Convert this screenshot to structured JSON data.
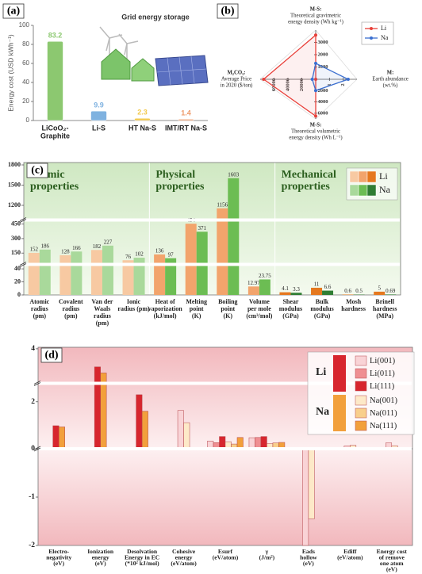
{
  "chart_data": [
    {
      "type": "bar",
      "label": "(a)",
      "ylabel": "Energy cost (USD kWh⁻¹)",
      "annotation": "Grid energy storage",
      "categories": [
        [
          "LiCoO₂-",
          "Graphite"
        ],
        [
          "Li-S"
        ],
        [
          "HT Na-S"
        ],
        [
          "IMT/RT Na-S"
        ]
      ],
      "values": [
        83.2,
        9.9,
        2.3,
        1.4
      ],
      "colors": [
        "#8cc870",
        "#7fb2e0",
        "#f2c94c",
        "#ee9a6a"
      ],
      "ylim": [
        0,
        100
      ],
      "yticks": [
        0,
        20,
        40,
        60,
        80,
        100
      ]
    },
    {
      "type": "radar",
      "label": "(b)",
      "axes": [
        {
          "label": [
            "M-S:",
            "Theoretical gravimetric",
            "energy density (Wh kg⁻¹)"
          ],
          "lim": [
            0,
            4000
          ],
          "ticks": [
            1000,
            2000,
            3000
          ]
        },
        {
          "label": [
            "M:",
            "Earth abundance",
            "(wt.%)"
          ],
          "lim": [
            0,
            3
          ],
          "ticks": [
            1,
            2
          ]
        },
        {
          "label": [
            "M-S:",
            "Theoretical volumetric",
            "energy density (Wh L⁻¹)"
          ],
          "lim": [
            0,
            7000
          ],
          "ticks": [
            2000,
            4000,
            6000
          ]
        },
        {
          "label": [
            "M₂CO₃:",
            "Average Price",
            "in 2020 ($/ton)"
          ],
          "lim": [
            0,
            80000
          ],
          "ticks": [
            20000,
            40000,
            60000
          ]
        }
      ],
      "series": [
        {
          "name": "Li",
          "color": "#e8403a",
          "values": [
            3600,
            0.002,
            6500,
            75000
          ]
        },
        {
          "name": "Na",
          "color": "#3b6fd0",
          "values": [
            1300,
            2.36,
            2000,
            5000
          ]
        }
      ]
    },
    {
      "type": "bar",
      "label": "(c)",
      "groups": [
        {
          "label": [
            "Atomic",
            "properties"
          ],
          "start": 0,
          "end": 3
        },
        {
          "label": [
            "Physical",
            "properties"
          ],
          "start": 4,
          "end": 7
        },
        {
          "label": [
            "Mechanical",
            "properties"
          ],
          "start": 8,
          "end": 11
        }
      ],
      "categories": [
        [
          "Atomic",
          "radius",
          "(pm)"
        ],
        [
          "Covalent",
          "radius",
          "(pm)"
        ],
        [
          "Van der",
          "Waals",
          "radius",
          "(pm)"
        ],
        [
          "Ionic",
          "radius (pm)"
        ],
        [
          "Heat of",
          "vaporization",
          "(kJ/mol)"
        ],
        [
          "Melting",
          "point",
          "(K)"
        ],
        [
          "Boiling",
          "point",
          "(K)"
        ],
        [
          "Volume",
          "per mole",
          "(cm³/mol)"
        ],
        [
          "Shear",
          "modulus",
          "(GPa)"
        ],
        [
          "Bulk",
          "modulus",
          "(GPa)"
        ],
        [
          "Mosh",
          "hardness"
        ],
        [
          "Brinell",
          "hardness",
          "(MPa)"
        ]
      ],
      "series": [
        {
          "name": "Li",
          "colors": [
            "#f7c9a2",
            "#f2a46c",
            "#e5781f"
          ],
          "values": [
            152,
            128,
            182,
            76,
            136,
            454,
            1156,
            12.97,
            4.1,
            11,
            0.6,
            5
          ]
        },
        {
          "name": "Na",
          "colors": [
            "#a9d99b",
            "#6cbd53",
            "#2f7d33"
          ],
          "values": [
            186,
            166,
            227,
            102,
            97,
            371,
            1603,
            23.75,
            3.3,
            6.6,
            0.5,
            0.69
          ]
        }
      ],
      "ylim": [
        0,
        1800
      ],
      "y_segments": [
        [
          0,
          45
        ],
        [
          45,
          480
        ],
        [
          1000,
          1800
        ]
      ],
      "yticks": [
        0,
        20,
        40,
        150,
        300,
        450,
        1200,
        1500,
        1800
      ]
    },
    {
      "type": "bar",
      "label": "(d)",
      "categories": [
        [
          "Electro-",
          "negativity",
          "(eV)"
        ],
        [
          "Ionization",
          "energy",
          "(eV)"
        ],
        [
          "Desolvation",
          "Energy in EC",
          "(*10² kJ/mol)"
        ],
        [
          "Cohesive",
          "energy",
          "(eV/atom)"
        ],
        [
          "Esurf",
          "(eV/atom)"
        ],
        [
          "γ",
          "(J/m²)"
        ],
        [
          "Eads",
          "hollow",
          "(eV)"
        ],
        [
          "Ediff",
          "(eV/atom)"
        ],
        [
          "Energy cost",
          "of remove",
          "one atom",
          "(eV)"
        ]
      ],
      "legend_groups": [
        "Li",
        "Na"
      ],
      "series": [
        {
          "name": "Li(001)",
          "color": "#f9d3d6",
          "values": [
            null,
            null,
            null,
            1.63,
            0.33,
            0.47,
            -2.0,
            0.12,
            0.25
          ]
        },
        {
          "name": "Li(011)",
          "color": "#ef8f92",
          "values": [
            null,
            null,
            null,
            null,
            0.26,
            0.48,
            null,
            null,
            null
          ]
        },
        {
          "name": "Li(111)",
          "color": "#d7262e",
          "values": [
            0.98,
            3.4,
            2.3,
            null,
            0.52,
            0.52,
            null,
            null,
            null
          ]
        },
        {
          "name": "Na(001)",
          "color": "#fde9c8",
          "values": [
            null,
            null,
            null,
            1.11,
            0.3,
            0.22,
            -1.45,
            0.15,
            0.13
          ]
        },
        {
          "name": "Na(011)",
          "color": "#f8cf8c",
          "values": [
            null,
            null,
            null,
            null,
            0.2,
            0.25,
            null,
            null,
            null
          ]
        },
        {
          "name": "Na(111)",
          "color": "#f2a03c",
          "values": [
            0.93,
            3.2,
            1.6,
            null,
            0.48,
            0.27,
            null,
            null,
            null
          ]
        }
      ],
      "ylim": [
        -2,
        4.05
      ],
      "y_segments": [
        [
          -2,
          0
        ],
        [
          0,
          2.6
        ],
        [
          3,
          4.05
        ]
      ],
      "yticks": [
        -2,
        -1,
        0,
        2,
        4
      ]
    }
  ]
}
